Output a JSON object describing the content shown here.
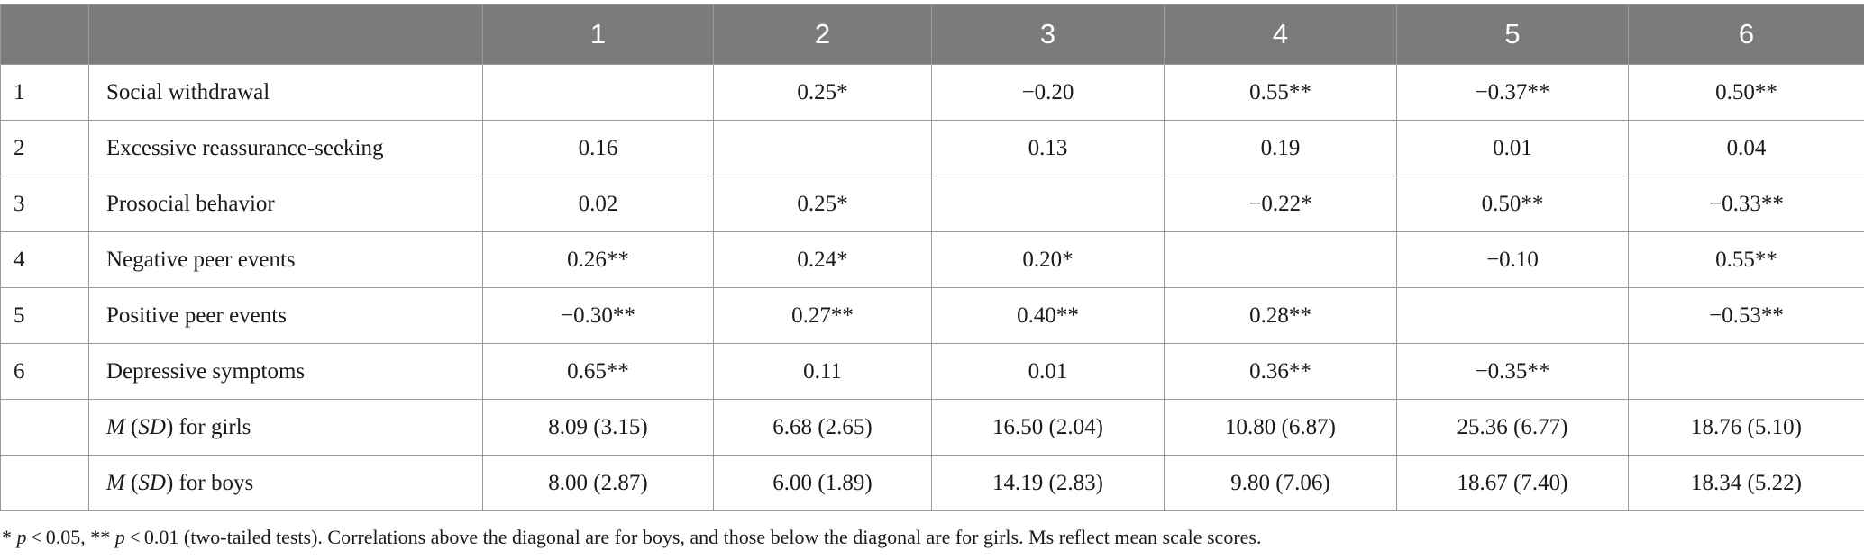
{
  "columns": [
    "",
    "",
    "1",
    "2",
    "3",
    "4",
    "5",
    "6"
  ],
  "rows": [
    {
      "num": "1",
      "label": "Social withdrawal",
      "cells": [
        "",
        "0.25*",
        "−0.20",
        "0.55**",
        "−0.37**",
        "0.50**"
      ]
    },
    {
      "num": "2",
      "label": "Excessive reassurance-seeking",
      "cells": [
        "0.16",
        "",
        "0.13",
        "0.19",
        "0.01",
        "0.04"
      ]
    },
    {
      "num": "3",
      "label": "Prosocial behavior",
      "cells": [
        "0.02",
        "0.25*",
        "",
        "−0.22*",
        "0.50**",
        "−0.33**"
      ]
    },
    {
      "num": "4",
      "label": "Negative peer events",
      "cells": [
        "0.26**",
        "0.24*",
        "0.20*",
        "",
        "−0.10",
        "0.55**"
      ]
    },
    {
      "num": "5",
      "label": "Positive peer events",
      "cells": [
        "−0.30**",
        "0.27**",
        "0.40**",
        "0.28**",
        "",
        "−0.53**"
      ]
    },
    {
      "num": "6",
      "label": "Depressive symptoms",
      "cells": [
        "0.65**",
        "0.11",
        "0.01",
        "0.36**",
        "−0.35**",
        ""
      ]
    }
  ],
  "summary_rows": [
    {
      "label_m": "M",
      "label_open": " (",
      "label_sd": "SD",
      "label_rest": ") for girls",
      "cells": [
        "8.09 (3.15)",
        "6.68 (2.65)",
        "16.50 (2.04)",
        "10.80 (6.87)",
        "25.36 (6.77)",
        "18.76 (5.10)"
      ]
    },
    {
      "label_m": "M",
      "label_open": " (",
      "label_sd": "SD",
      "label_rest": ") for boys",
      "cells": [
        "8.00 (2.87)",
        "6.00 (1.89)",
        "14.19 (2.83)",
        "9.80 (7.06)",
        "18.67 (7.40)",
        "18.34 (5.22)"
      ]
    }
  ],
  "footnote": {
    "star1": "* ",
    "p1": "p",
    "t1": " < 0.05, ** ",
    "p2": "p",
    "t2": " < 0.01 (two-tailed tests). Correlations above the diagonal are for boys, and those below the diagonal are for girls. Ms reflect mean scale scores."
  }
}
